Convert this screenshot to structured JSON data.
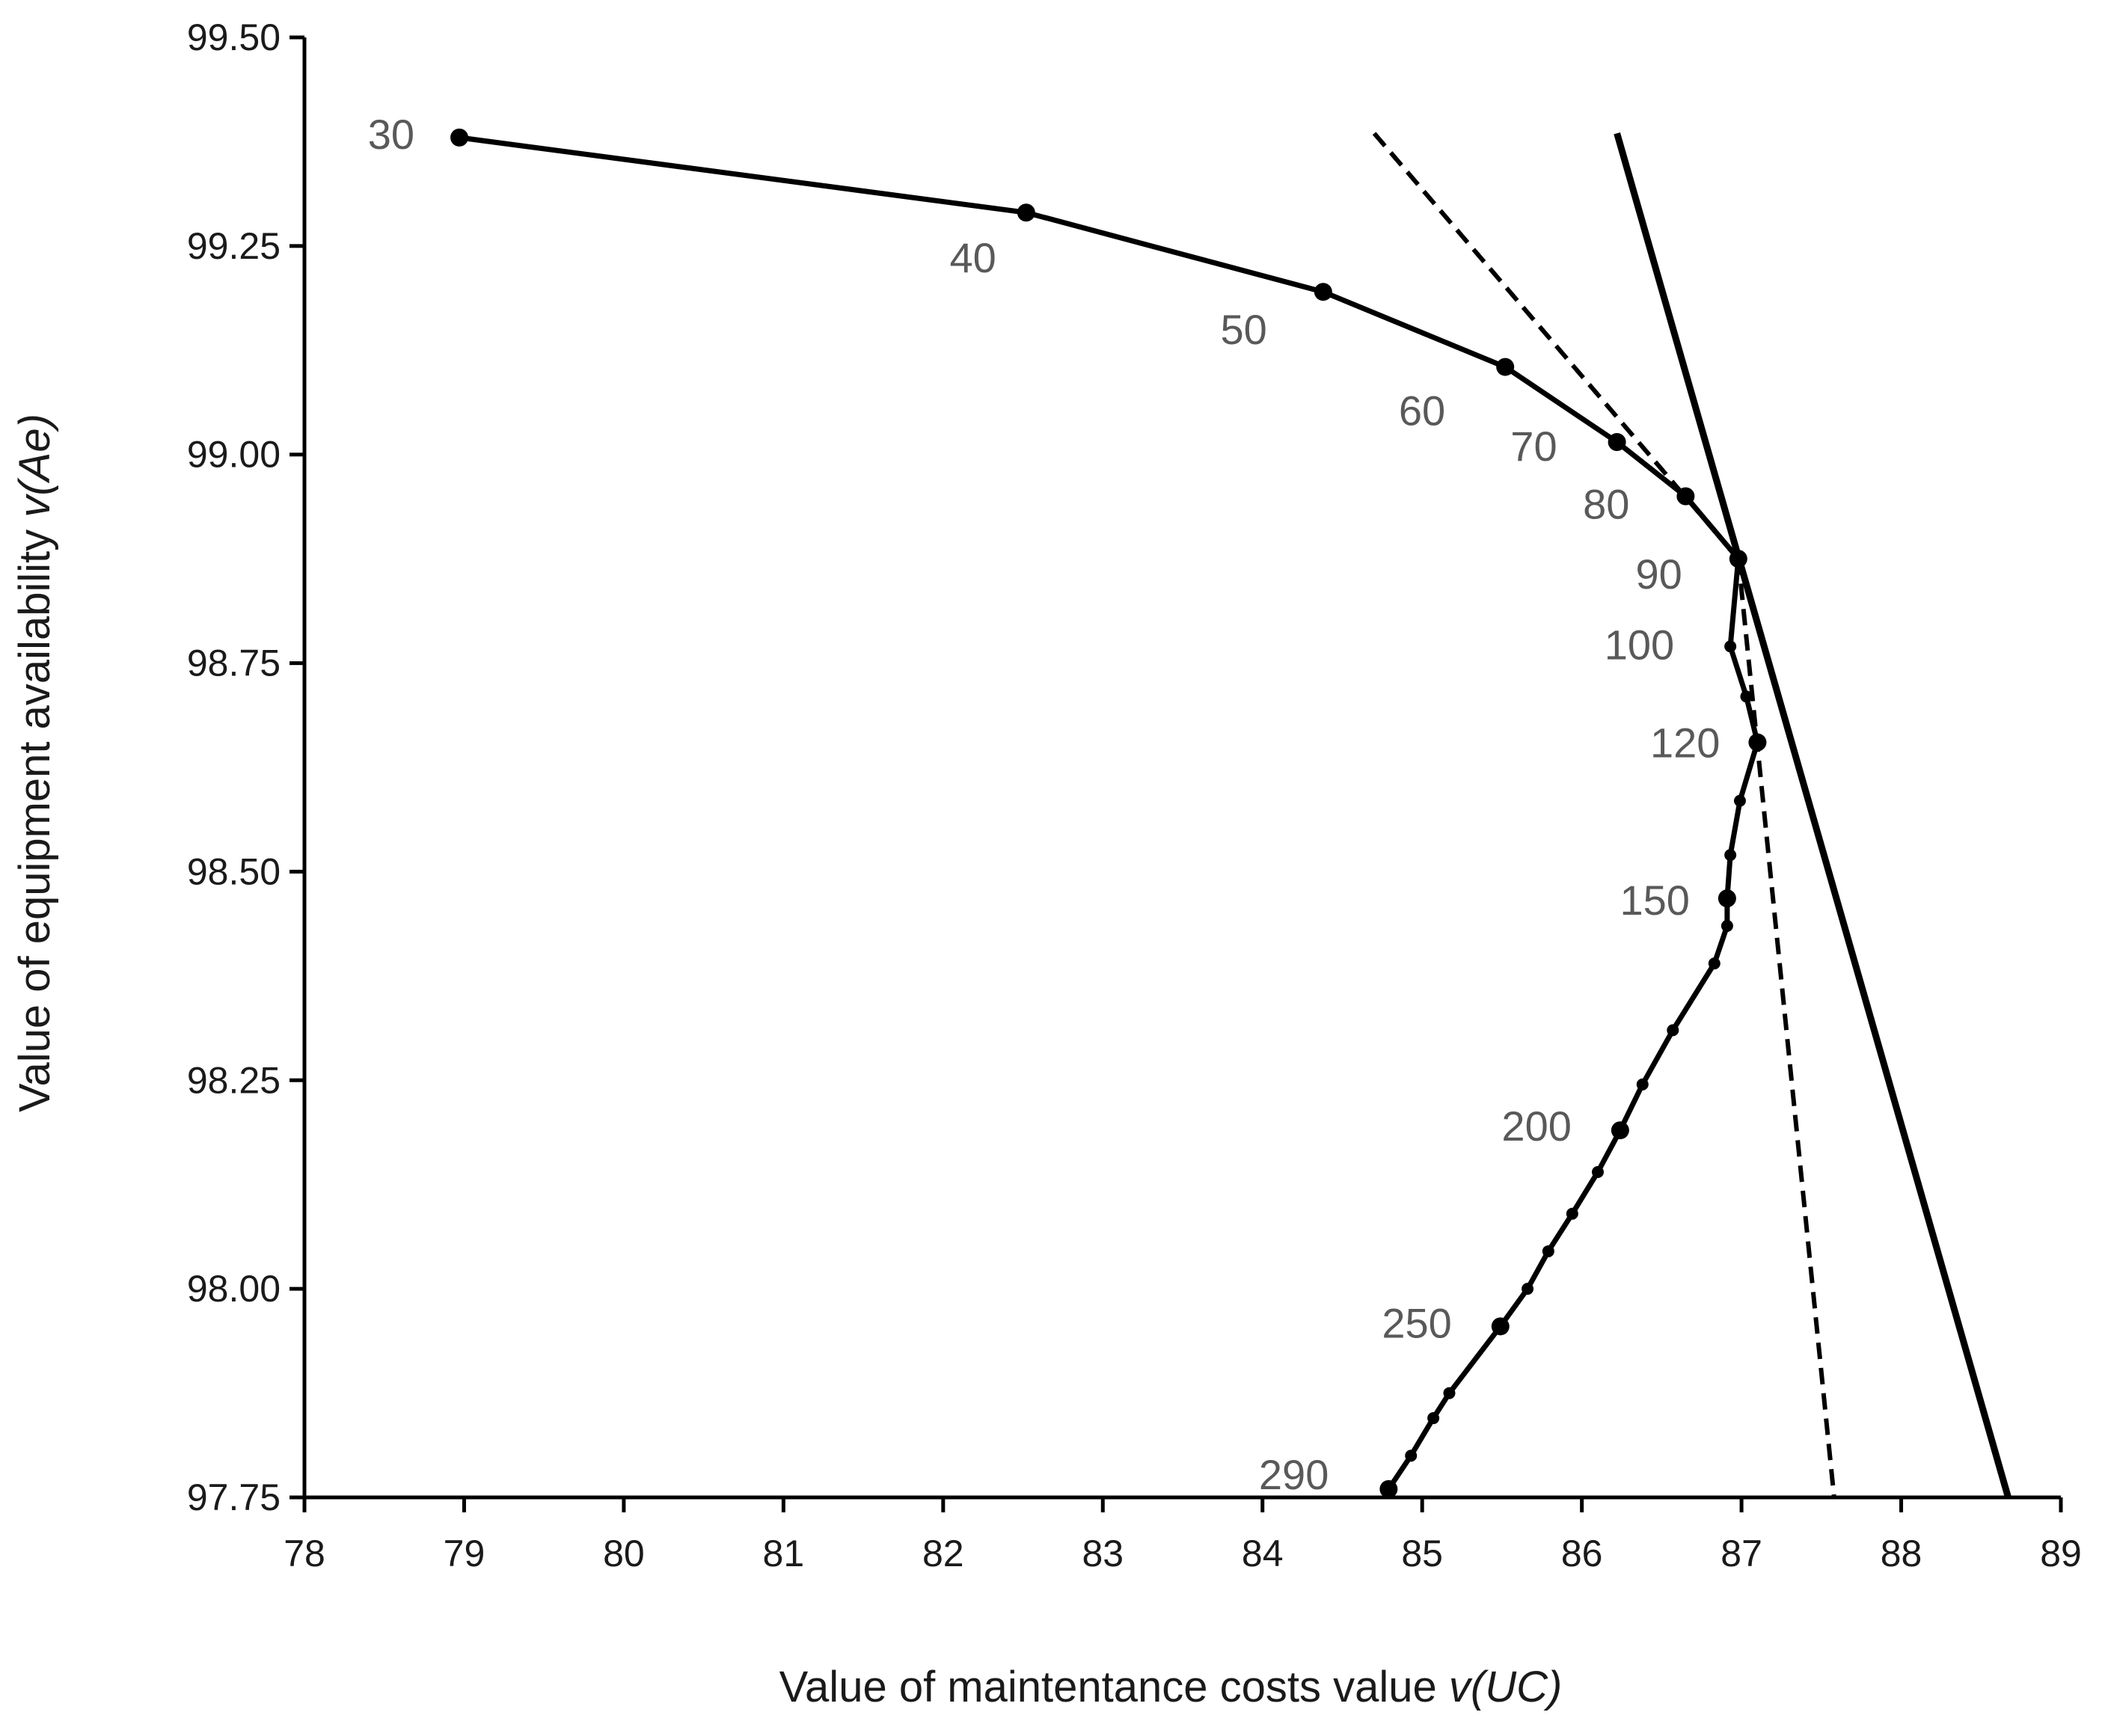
{
  "chart_data": {
    "type": "line",
    "xlabel": "Value of maintentance costs value ",
    "xlabel_italic": "v(UC)",
    "ylabel": "Value of equipment availability ",
    "ylabel_italic": "v(Ae)",
    "xlim": [
      78,
      89
    ],
    "ylim": [
      97.75,
      99.5
    ],
    "xticks": [
      "78",
      "79",
      "80",
      "81",
      "82",
      "83",
      "84",
      "85",
      "86",
      "87",
      "88",
      "89"
    ],
    "yticks": [
      "97.75",
      "98.00",
      "98.25",
      "98.50",
      "98.75",
      "99.00",
      "99.25",
      "99.50"
    ],
    "grid": false,
    "legend": "none",
    "series": [
      {
        "style": "solid-with-markers",
        "color": "#000000",
        "points": [
          {
            "x": 78.97,
            "y": 99.38,
            "label": "30",
            "marker": "large"
          },
          {
            "x": 82.52,
            "y": 99.29,
            "label": "40",
            "marker": "large"
          },
          {
            "x": 84.38,
            "y": 99.195,
            "label": "50",
            "marker": "large"
          },
          {
            "x": 85.52,
            "y": 99.105,
            "label": "60",
            "marker": "large"
          },
          {
            "x": 86.22,
            "y": 99.015,
            "label": "70",
            "marker": "large"
          },
          {
            "x": 86.65,
            "y": 98.95,
            "label": "80",
            "marker": "large"
          },
          {
            "x": 86.98,
            "y": 98.875,
            "label": "90",
            "marker": "large"
          },
          {
            "x": 86.93,
            "y": 98.77,
            "label": "100",
            "marker": "small"
          },
          {
            "x": 87.03,
            "y": 98.71,
            "label": "",
            "marker": "small"
          },
          {
            "x": 87.1,
            "y": 98.655,
            "label": "120",
            "marker": "large"
          },
          {
            "x": 86.99,
            "y": 98.585,
            "label": "",
            "marker": "small"
          },
          {
            "x": 86.93,
            "y": 98.52,
            "label": "",
            "marker": "small"
          },
          {
            "x": 86.91,
            "y": 98.468,
            "label": "150",
            "marker": "large"
          },
          {
            "x": 86.91,
            "y": 98.435,
            "label": "",
            "marker": "small"
          },
          {
            "x": 86.83,
            "y": 98.39,
            "label": "",
            "marker": "small"
          },
          {
            "x": 86.57,
            "y": 98.31,
            "label": "",
            "marker": "small"
          },
          {
            "x": 86.38,
            "y": 98.245,
            "label": "",
            "marker": "small"
          },
          {
            "x": 86.24,
            "y": 98.19,
            "label": "200",
            "marker": "large"
          },
          {
            "x": 86.1,
            "y": 98.14,
            "label": "",
            "marker": "small"
          },
          {
            "x": 85.94,
            "y": 98.09,
            "label": "",
            "marker": "small"
          },
          {
            "x": 85.79,
            "y": 98.045,
            "label": "",
            "marker": "small"
          },
          {
            "x": 85.66,
            "y": 98.0,
            "label": "",
            "marker": "small"
          },
          {
            "x": 85.49,
            "y": 97.955,
            "label": "250",
            "marker": "large"
          },
          {
            "x": 85.17,
            "y": 97.875,
            "label": "",
            "marker": "small"
          },
          {
            "x": 85.07,
            "y": 97.845,
            "label": "",
            "marker": "small"
          },
          {
            "x": 84.93,
            "y": 97.8,
            "label": "",
            "marker": "small"
          },
          {
            "x": 84.79,
            "y": 97.76,
            "label": "290",
            "marker": "large"
          }
        ]
      },
      {
        "style": "dashed",
        "color": "#000000",
        "points": [
          {
            "x": 84.7,
            "y": 99.385
          },
          {
            "x": 86.98,
            "y": 98.875
          },
          {
            "x": 87.58,
            "y": 97.75
          }
        ]
      },
      {
        "style": "solid-thick",
        "color": "#000000",
        "points": [
          {
            "x": 86.22,
            "y": 99.385
          },
          {
            "x": 88.67,
            "y": 97.75
          }
        ]
      }
    ]
  }
}
